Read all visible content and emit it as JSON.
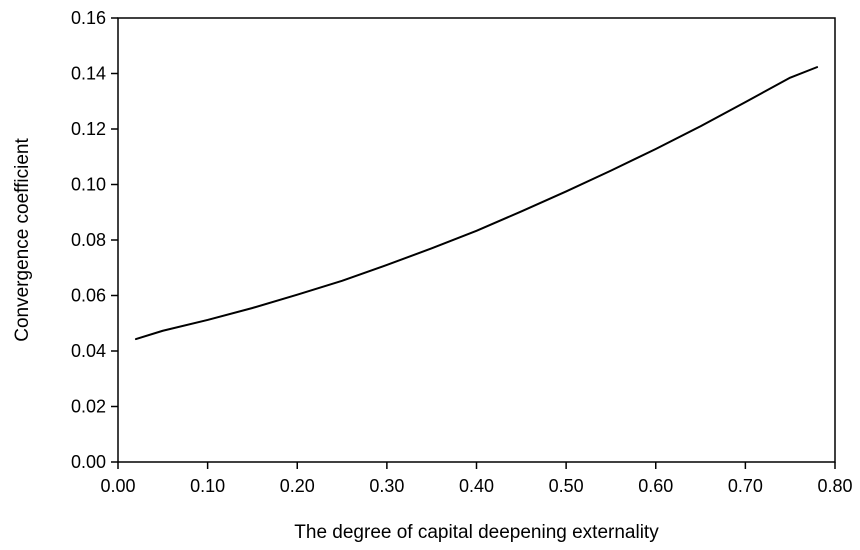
{
  "chart_data": {
    "type": "line",
    "title": "",
    "xlabel": "The degree of capital deepening externality",
    "ylabel": "Convergence coefficient",
    "xlim": [
      0,
      0.8
    ],
    "ylim": [
      0,
      0.16
    ],
    "x_ticks": [
      "0.00",
      "0.10",
      "0.20",
      "0.30",
      "0.40",
      "0.50",
      "0.60",
      "0.70",
      "0.80"
    ],
    "y_ticks": [
      "0.00",
      "0.02",
      "0.04",
      "0.06",
      "0.08",
      "0.10",
      "0.12",
      "0.14",
      "0.16"
    ],
    "grid": false,
    "legend": "none",
    "series": [
      {
        "color": "#000000",
        "x": [
          0.02,
          0.05,
          0.1,
          0.15,
          0.2,
          0.25,
          0.3,
          0.35,
          0.4,
          0.45,
          0.5,
          0.55,
          0.6,
          0.65,
          0.7,
          0.75,
          0.78
        ],
        "y": [
          0.0443,
          0.0473,
          0.0512,
          0.0555,
          0.0603,
          0.0653,
          0.071,
          0.077,
          0.0833,
          0.0903,
          0.0975,
          0.105,
          0.1128,
          0.121,
          0.1297,
          0.1385,
          0.1423
        ]
      }
    ]
  }
}
